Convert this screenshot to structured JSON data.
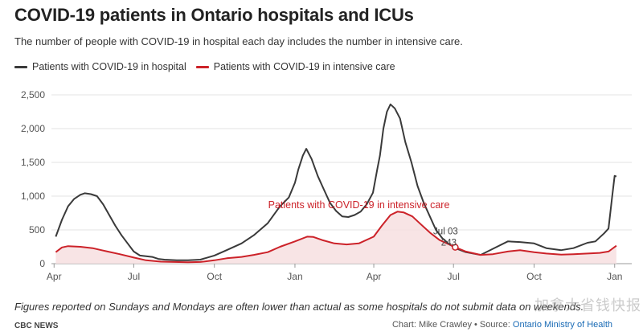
{
  "title": "COVID-19 patients in Ontario hospitals and ICUs",
  "subtitle": "The number of people with COVID-19 in hospital each day includes the number in intensive care.",
  "legend": {
    "hospital": "Patients with COVID-19 in hospital",
    "icu": "Patients with COVID-19 in intensive care"
  },
  "colors": {
    "hospital": "#3a3a3a",
    "icu": "#cc2229",
    "icu_fill": "#f7dfe1",
    "grid": "#e3e3e3",
    "link": "#1a6bb5"
  },
  "footer": {
    "note": "Figures reported on Sundays and Mondays are often lower than actual as some hospitals do not submit data on weekends.",
    "brand": "CBC NEWS",
    "source_prefix": "Chart: Mike Crawley • Source: ",
    "source_link": "Ontario Ministry of Health",
    "watermark": "加拿大省钱快报"
  },
  "chart_data": {
    "type": "line",
    "title": "COVID-19 patients in Ontario hospitals and ICUs",
    "xlabel": "",
    "ylabel": "",
    "ylim": [
      0,
      2500
    ],
    "yticks": [
      0,
      500,
      1000,
      1500,
      2000,
      2500
    ],
    "ytick_labels": [
      "0",
      "500",
      "1,000",
      "1,500",
      "2,000",
      "2,500"
    ],
    "xlim": [
      "2020-03-29",
      "2022-01-15"
    ],
    "xticks": [
      {
        "date": "2020-04-01",
        "label": "Apr"
      },
      {
        "date": "2020-07-01",
        "label": "Jul"
      },
      {
        "date": "2020-10-01",
        "label": "Oct"
      },
      {
        "date": "2021-01-01",
        "label": "Jan"
      },
      {
        "date": "2021-04-01",
        "label": "Apr"
      },
      {
        "date": "2021-07-01",
        "label": "Jul"
      },
      {
        "date": "2021-10-01",
        "label": "Oct"
      },
      {
        "date": "2022-01-01",
        "label": "Jan"
      }
    ],
    "grid": true,
    "legend_position": "top-left",
    "series": [
      {
        "name": "Patients with COVID-19 in hospital",
        "points": [
          [
            "2020-04-03",
            400
          ],
          [
            "2020-04-10",
            650
          ],
          [
            "2020-04-17",
            850
          ],
          [
            "2020-04-24",
            960
          ],
          [
            "2020-05-01",
            1020
          ],
          [
            "2020-05-06",
            1043
          ],
          [
            "2020-05-13",
            1030
          ],
          [
            "2020-05-20",
            1000
          ],
          [
            "2020-05-27",
            880
          ],
          [
            "2020-06-03",
            720
          ],
          [
            "2020-06-10",
            560
          ],
          [
            "2020-06-17",
            420
          ],
          [
            "2020-06-24",
            300
          ],
          [
            "2020-07-01",
            180
          ],
          [
            "2020-07-08",
            120
          ],
          [
            "2020-07-15",
            110
          ],
          [
            "2020-07-22",
            100
          ],
          [
            "2020-07-29",
            70
          ],
          [
            "2020-08-05",
            60
          ],
          [
            "2020-08-19",
            50
          ],
          [
            "2020-09-01",
            50
          ],
          [
            "2020-09-15",
            60
          ],
          [
            "2020-10-01",
            120
          ],
          [
            "2020-10-15",
            200
          ],
          [
            "2020-11-01",
            300
          ],
          [
            "2020-11-15",
            420
          ],
          [
            "2020-12-01",
            600
          ],
          [
            "2020-12-15",
            850
          ],
          [
            "2020-12-25",
            980
          ],
          [
            "2021-01-01",
            1200
          ],
          [
            "2021-01-05",
            1400
          ],
          [
            "2021-01-10",
            1600
          ],
          [
            "2021-01-14",
            1701
          ],
          [
            "2021-01-20",
            1550
          ],
          [
            "2021-01-27",
            1300
          ],
          [
            "2021-02-03",
            1100
          ],
          [
            "2021-02-10",
            900
          ],
          [
            "2021-02-17",
            780
          ],
          [
            "2021-02-24",
            700
          ],
          [
            "2021-03-03",
            690
          ],
          [
            "2021-03-10",
            720
          ],
          [
            "2021-03-17",
            770
          ],
          [
            "2021-03-24",
            880
          ],
          [
            "2021-03-31",
            1050
          ],
          [
            "2021-04-05",
            1400
          ],
          [
            "2021-04-08",
            1600
          ],
          [
            "2021-04-12",
            2000
          ],
          [
            "2021-04-16",
            2250
          ],
          [
            "2021-04-20",
            2360
          ],
          [
            "2021-04-25",
            2300
          ],
          [
            "2021-05-01",
            2150
          ],
          [
            "2021-05-07",
            1800
          ],
          [
            "2021-05-14",
            1500
          ],
          [
            "2021-05-21",
            1150
          ],
          [
            "2021-05-28",
            900
          ],
          [
            "2021-06-04",
            700
          ],
          [
            "2021-06-11",
            500
          ],
          [
            "2021-06-18",
            380
          ],
          [
            "2021-06-25",
            300
          ],
          [
            "2021-07-03",
            230
          ],
          [
            "2021-07-15",
            170
          ],
          [
            "2021-08-01",
            130
          ],
          [
            "2021-08-15",
            220
          ],
          [
            "2021-09-01",
            330
          ],
          [
            "2021-09-15",
            320
          ],
          [
            "2021-10-01",
            300
          ],
          [
            "2021-10-15",
            230
          ],
          [
            "2021-11-01",
            200
          ],
          [
            "2021-11-15",
            230
          ],
          [
            "2021-12-01",
            310
          ],
          [
            "2021-12-10",
            330
          ],
          [
            "2021-12-20",
            450
          ],
          [
            "2021-12-25",
            520
          ],
          [
            "2021-12-29",
            980
          ],
          [
            "2022-01-01",
            1300
          ],
          [
            "2022-01-03",
            1290
          ]
        ]
      },
      {
        "name": "Patients with COVID-19 in intensive care",
        "points": [
          [
            "2020-04-03",
            170
          ],
          [
            "2020-04-10",
            240
          ],
          [
            "2020-04-17",
            260
          ],
          [
            "2020-05-01",
            250
          ],
          [
            "2020-05-15",
            230
          ],
          [
            "2020-06-01",
            180
          ],
          [
            "2020-06-15",
            140
          ],
          [
            "2020-07-01",
            90
          ],
          [
            "2020-07-15",
            50
          ],
          [
            "2020-08-01",
            30
          ],
          [
            "2020-09-01",
            20
          ],
          [
            "2020-09-15",
            25
          ],
          [
            "2020-10-01",
            50
          ],
          [
            "2020-10-15",
            80
          ],
          [
            "2020-11-01",
            100
          ],
          [
            "2020-11-15",
            130
          ],
          [
            "2020-12-01",
            170
          ],
          [
            "2020-12-15",
            250
          ],
          [
            "2021-01-01",
            330
          ],
          [
            "2021-01-15",
            400
          ],
          [
            "2021-01-22",
            395
          ],
          [
            "2021-02-01",
            350
          ],
          [
            "2021-02-15",
            300
          ],
          [
            "2021-03-01",
            285
          ],
          [
            "2021-03-15",
            300
          ],
          [
            "2021-04-01",
            400
          ],
          [
            "2021-04-10",
            560
          ],
          [
            "2021-04-20",
            720
          ],
          [
            "2021-04-28",
            770
          ],
          [
            "2021-05-05",
            760
          ],
          [
            "2021-05-15",
            700
          ],
          [
            "2021-05-25",
            580
          ],
          [
            "2021-06-05",
            450
          ],
          [
            "2021-06-15",
            350
          ],
          [
            "2021-06-25",
            290
          ],
          [
            "2021-07-03",
            243
          ],
          [
            "2021-07-15",
            180
          ],
          [
            "2021-08-01",
            130
          ],
          [
            "2021-08-15",
            140
          ],
          [
            "2021-09-01",
            180
          ],
          [
            "2021-09-15",
            200
          ],
          [
            "2021-10-01",
            170
          ],
          [
            "2021-10-15",
            150
          ],
          [
            "2021-11-01",
            135
          ],
          [
            "2021-11-15",
            140
          ],
          [
            "2021-12-01",
            150
          ],
          [
            "2021-12-15",
            160
          ],
          [
            "2021-12-25",
            180
          ],
          [
            "2022-01-03",
            266
          ]
        ]
      }
    ],
    "annotations": [
      {
        "text": "Patients with COVID-19 in intensive care",
        "series": "Patients with COVID-19 in intensive care"
      },
      {
        "date_label": "Jul 03",
        "value_label": "243",
        "x": "2021-07-03",
        "y": 243
      }
    ]
  }
}
